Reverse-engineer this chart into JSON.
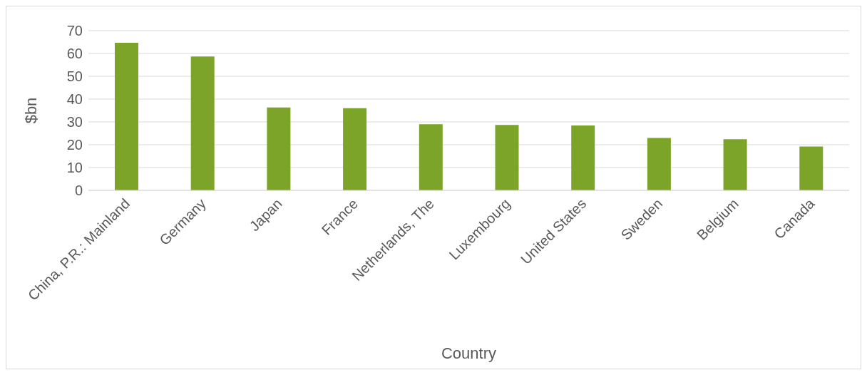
{
  "chart_data": {
    "type": "bar",
    "xlabel": "Country",
    "ylabel": "$bn",
    "categories": [
      "China, P.R.: Mainland",
      "Germany",
      "Japan",
      "France",
      "Netherlands, The",
      "Luxembourg",
      "United States",
      "Sweden",
      "Belgium",
      "Canada"
    ],
    "values": [
      64.7,
      58.7,
      36.3,
      36.0,
      29.0,
      28.7,
      28.4,
      23.0,
      22.4,
      19.2
    ],
    "color": "#7ba428",
    "ylim": [
      0,
      70
    ],
    "yticks": [
      0,
      10,
      20,
      30,
      40,
      50,
      60,
      70
    ],
    "grid": "y"
  }
}
